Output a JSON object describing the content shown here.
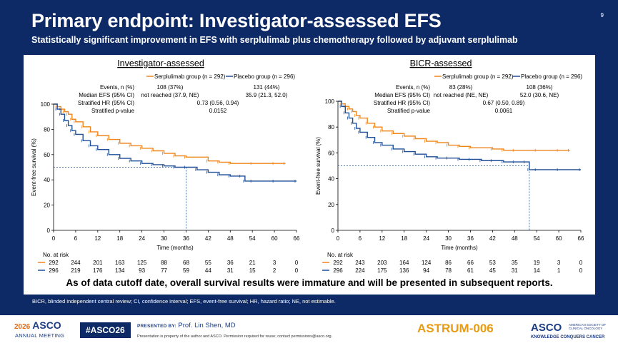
{
  "slide": {
    "title": "Primary endpoint: Investigator-assessed EFS",
    "subtitle": "Statistically significant improvement in EFS with serplulimab plus chemotherapy followed by adjuvant serplulimab",
    "page_number": "9",
    "bottom_statement": "As of data cutoff date, overall survival results were immature and will be presented in subsequent reports.",
    "footnote": "BICR, blinded independent central review; CI, confidence interval; EFS, event-free survival; HR, hazard ratio; NE, not estimable."
  },
  "footer": {
    "meeting_year": "2026",
    "meeting_name": "ASCO",
    "meeting_sub": "ANNUAL MEETING",
    "hashtag": "#ASCO26",
    "presented_by_label": "PRESENTED BY:",
    "presenter": "Prof. Lin Shen, MD",
    "permission": "Presentation is property of the author and ASCO. Permission required for reuse; contact permissions@asco.org.",
    "trial": "ASTRUM-006",
    "org_logo": "ASCO",
    "org_sub": "AMERICAN SOCIETY OF CLINICAL ONCOLOGY",
    "org_tagline": "KNOWLEDGE CONQUERS CANCER"
  },
  "colors": {
    "serplulimab": "#f0861c",
    "placebo": "#1f4f96",
    "background": "#0d2a66"
  },
  "chart_data": [
    {
      "type": "line",
      "title": "Investigator-assessed",
      "xlabel": "Time (months)",
      "ylabel": "Event-free survival (%)",
      "xlim": [
        0,
        66
      ],
      "ylim": [
        0,
        100
      ],
      "xticks": [
        0,
        6,
        12,
        18,
        24,
        30,
        36,
        42,
        48,
        54,
        60,
        66
      ],
      "yticks": [
        0,
        20,
        40,
        60,
        80,
        100
      ],
      "grid": false,
      "legend": "top",
      "median_ref": {
        "y": 50,
        "x": 36
      },
      "series": [
        {
          "name": "Serplulimab group (n = 292)",
          "color": "#f0861c",
          "x": [
            0,
            1,
            2,
            3,
            4,
            5,
            6,
            8,
            10,
            12,
            15,
            18,
            21,
            24,
            27,
            30,
            33,
            36,
            42,
            45,
            48,
            54,
            60,
            63
          ],
          "y": [
            100,
            98,
            96,
            94,
            92,
            88,
            86,
            82,
            78,
            75,
            72,
            69,
            67,
            65,
            63,
            61,
            59,
            58,
            55,
            54,
            53,
            53,
            53,
            53
          ]
        },
        {
          "name": "Placebo group (n = 296)",
          "color": "#1f4f96",
          "x": [
            0,
            1,
            2,
            3,
            4,
            5,
            6,
            8,
            10,
            12,
            15,
            18,
            21,
            24,
            27,
            30,
            33,
            36,
            39,
            42,
            45,
            48,
            51,
            52,
            54,
            60,
            66
          ],
          "y": [
            100,
            96,
            92,
            87,
            83,
            79,
            76,
            71,
            67,
            64,
            60,
            57,
            55,
            53,
            52,
            51,
            50,
            50,
            48,
            46,
            44,
            43,
            43,
            39,
            39,
            39,
            39
          ]
        }
      ],
      "stats": {
        "headers": [
          "Serplulimab group (n = 292)",
          "Placebo group (n = 296)"
        ],
        "rows": [
          {
            "label": "Events, n (%)",
            "serplulimab": "108 (37%)",
            "placebo": "131 (44%)"
          },
          {
            "label": "Median EFS (95% CI)",
            "serplulimab": "not reached (37.9, NE)",
            "placebo": "35.9 (21.3, 52.0)"
          },
          {
            "label": "Stratified HR (95% CI)",
            "value": "0.73 (0.56, 0.94)"
          },
          {
            "label": "Stratified p-value",
            "value": "0.0152"
          }
        ]
      },
      "at_risk": {
        "label": "No. at risk",
        "serplulimab": [
          "292",
          "244",
          "201",
          "163",
          "125",
          "88",
          "68",
          "55",
          "36",
          "21",
          "3",
          "0"
        ],
        "placebo": [
          "296",
          "219",
          "176",
          "134",
          "93",
          "77",
          "59",
          "44",
          "31",
          "15",
          "2",
          "0"
        ]
      }
    },
    {
      "type": "line",
      "title": "BICR-assessed",
      "xlabel": "Time (months)",
      "ylabel": "Event-free survival (%)",
      "xlim": [
        0,
        66
      ],
      "ylim": [
        0,
        100
      ],
      "xticks": [
        0,
        6,
        12,
        18,
        24,
        30,
        36,
        42,
        48,
        54,
        60,
        66
      ],
      "yticks": [
        0,
        20,
        40,
        60,
        80,
        100
      ],
      "grid": false,
      "legend": "top",
      "median_ref": {
        "y": 50,
        "x": 52
      },
      "series": [
        {
          "name": "Serplulimab group (n = 292)",
          "color": "#f0861c",
          "x": [
            0,
            1,
            2,
            3,
            4,
            5,
            6,
            8,
            10,
            12,
            15,
            18,
            21,
            24,
            27,
            30,
            33,
            36,
            42,
            45,
            48,
            54,
            60,
            63
          ],
          "y": [
            100,
            98,
            96,
            94,
            92,
            89,
            87,
            83,
            80,
            77,
            75,
            73,
            71,
            69,
            68,
            66,
            65,
            64,
            63,
            62,
            62,
            62,
            62,
            62
          ]
        },
        {
          "name": "Placebo group (n = 296)",
          "color": "#1f4f96",
          "x": [
            0,
            1,
            2,
            3,
            4,
            5,
            6,
            8,
            10,
            12,
            15,
            18,
            21,
            24,
            27,
            30,
            33,
            36,
            39,
            42,
            45,
            48,
            51,
            52,
            54,
            60,
            66
          ],
          "y": [
            100,
            96,
            91,
            87,
            83,
            79,
            76,
            72,
            68,
            66,
            63,
            61,
            59,
            57,
            56,
            56,
            55,
            55,
            54,
            54,
            53,
            53,
            53,
            47,
            47,
            47,
            47
          ]
        }
      ],
      "stats": {
        "headers": [
          "Serplulimab group (n = 292)",
          "Placebo group (n = 296)"
        ],
        "rows": [
          {
            "label": "Events, n (%)",
            "serplulimab": "83 (28%)",
            "placebo": "108 (36%)"
          },
          {
            "label": "Median EFS (95% CI)",
            "serplulimab": "not reached (NE, NE)",
            "placebo": "52.0 (30.6, NE)"
          },
          {
            "label": "Stratified HR (95% CI)",
            "value": "0.67 (0.50, 0.89)"
          },
          {
            "label": "Stratified p-value",
            "value": "0.0061"
          }
        ]
      },
      "at_risk": {
        "label": "No. at risk",
        "serplulimab": [
          "292",
          "243",
          "203",
          "164",
          "124",
          "86",
          "66",
          "53",
          "35",
          "19",
          "3",
          "0"
        ],
        "placebo": [
          "296",
          "224",
          "175",
          "136",
          "94",
          "78",
          "61",
          "45",
          "31",
          "14",
          "1",
          "0"
        ]
      }
    }
  ]
}
